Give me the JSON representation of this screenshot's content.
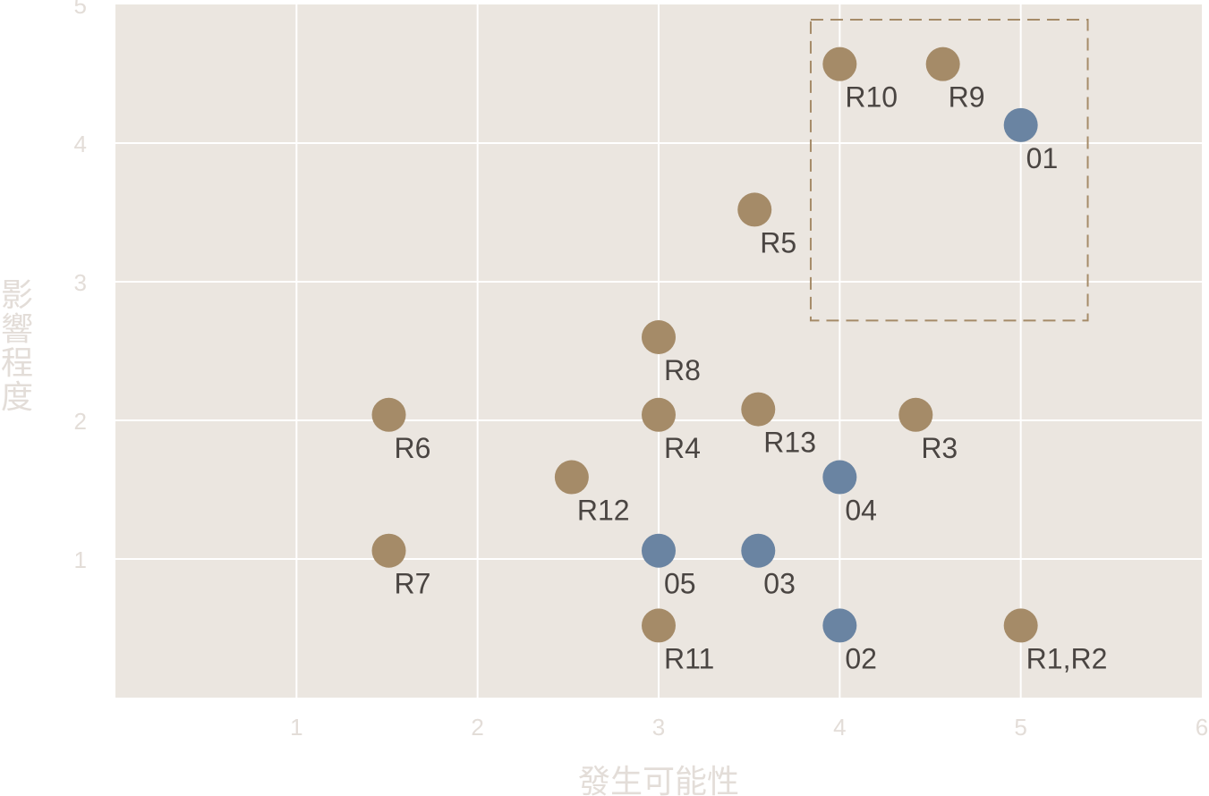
{
  "chart_data": {
    "type": "scatter",
    "title": "",
    "xlabel": "發生可能性",
    "ylabel": "影響程度",
    "xlim": [
      0,
      6
    ],
    "ylim": [
      0,
      5
    ],
    "xticks": [
      "1",
      "2",
      "3",
      "4",
      "5",
      "6"
    ],
    "yticks": [
      "1",
      "2",
      "3",
      "4",
      "5"
    ],
    "grid": true,
    "colors": {
      "R": "#a58b68",
      "O": "#6a84a2",
      "background": "#ebe6e0",
      "axis_text": "#e3ddd8",
      "label": "#4a4542",
      "highlight_box": "#a58b68"
    },
    "highlight_box": {
      "x": [
        3.84,
        5.37
      ],
      "y": [
        2.72,
        4.89
      ],
      "style": "dashed"
    },
    "points": [
      {
        "label": "R10",
        "x": 4.0,
        "y": 4.57,
        "group": "R"
      },
      {
        "label": "R9",
        "x": 4.57,
        "y": 4.57,
        "group": "R"
      },
      {
        "label": "01",
        "x": 5.0,
        "y": 4.13,
        "group": "O"
      },
      {
        "label": "R5",
        "x": 3.53,
        "y": 3.52,
        "group": "R"
      },
      {
        "label": "R8",
        "x": 3.0,
        "y": 2.6,
        "group": "R"
      },
      {
        "label": "R6",
        "x": 1.51,
        "y": 2.04,
        "group": "R"
      },
      {
        "label": "R4",
        "x": 3.0,
        "y": 2.04,
        "group": "R"
      },
      {
        "label": "R13",
        "x": 3.55,
        "y": 2.08,
        "group": "R"
      },
      {
        "label": "R3",
        "x": 4.42,
        "y": 2.04,
        "group": "R"
      },
      {
        "label": "R12",
        "x": 2.52,
        "y": 1.59,
        "group": "R"
      },
      {
        "label": "04",
        "x": 4.0,
        "y": 1.59,
        "group": "O"
      },
      {
        "label": "R7",
        "x": 1.51,
        "y": 1.06,
        "group": "R"
      },
      {
        "label": "05",
        "x": 3.0,
        "y": 1.06,
        "group": "O"
      },
      {
        "label": "03",
        "x": 3.55,
        "y": 1.06,
        "group": "O"
      },
      {
        "label": "R11",
        "x": 3.0,
        "y": 0.52,
        "group": "R"
      },
      {
        "label": "02",
        "x": 4.0,
        "y": 0.52,
        "group": "O"
      },
      {
        "label": "R1,R2",
        "x": 5.0,
        "y": 0.52,
        "group": "R"
      }
    ]
  }
}
